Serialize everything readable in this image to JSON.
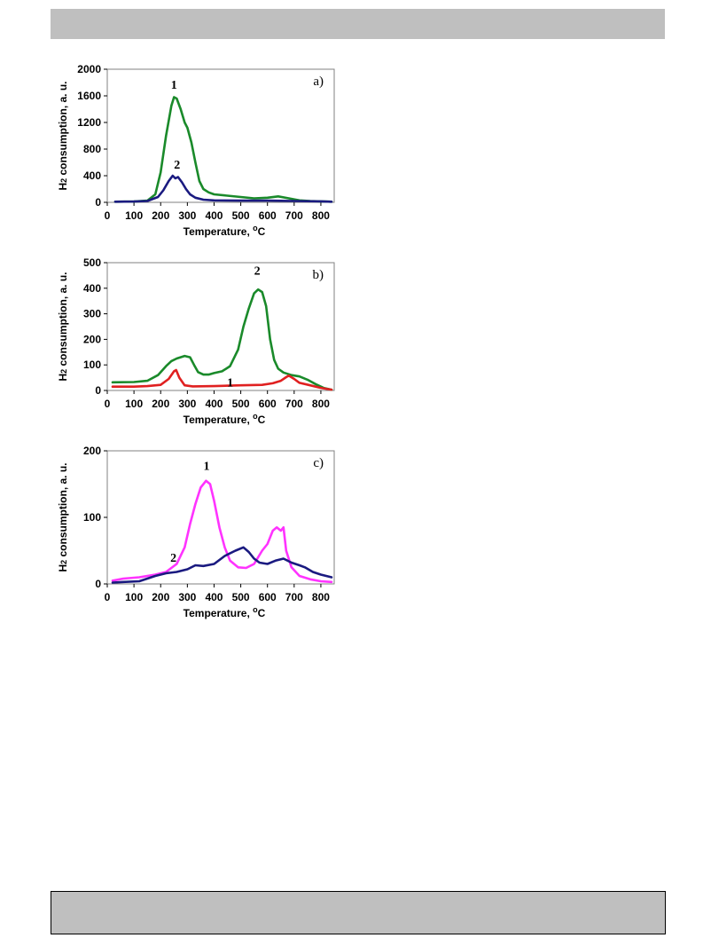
{
  "page": {
    "header_bar": "",
    "footer_box": ""
  },
  "chart_data": [
    {
      "type": "line",
      "panel_label": "a)",
      "xlabel": "Temperature, °C",
      "ylabel": "H2 consumption, a. u.",
      "xlim": [
        0,
        850
      ],
      "ylim": [
        0,
        2000
      ],
      "x_ticks": [
        0,
        100,
        200,
        300,
        400,
        500,
        600,
        700,
        800
      ],
      "y_ticks": [
        0,
        400,
        800,
        1200,
        1600,
        2000
      ],
      "series": [
        {
          "curve_label": "1",
          "color": "#1a8a2a",
          "points": [
            [
              30,
              10
            ],
            [
              100,
              12
            ],
            [
              150,
              25
            ],
            [
              180,
              120
            ],
            [
              200,
              450
            ],
            [
              220,
              1000
            ],
            [
              240,
              1450
            ],
            [
              250,
              1580
            ],
            [
              260,
              1560
            ],
            [
              275,
              1400
            ],
            [
              290,
              1200
            ],
            [
              300,
              1120
            ],
            [
              315,
              900
            ],
            [
              330,
              600
            ],
            [
              345,
              320
            ],
            [
              360,
              200
            ],
            [
              380,
              150
            ],
            [
              400,
              120
            ],
            [
              450,
              100
            ],
            [
              500,
              80
            ],
            [
              550,
              60
            ],
            [
              600,
              70
            ],
            [
              640,
              90
            ],
            [
              680,
              60
            ],
            [
              720,
              30
            ],
            [
              760,
              20
            ],
            [
              800,
              15
            ],
            [
              840,
              10
            ]
          ]
        },
        {
          "curve_label": "2",
          "color": "#1a1a80",
          "points": [
            [
              30,
              10
            ],
            [
              100,
              12
            ],
            [
              150,
              20
            ],
            [
              190,
              80
            ],
            [
              210,
              180
            ],
            [
              230,
              320
            ],
            [
              245,
              400
            ],
            [
              255,
              360
            ],
            [
              265,
              380
            ],
            [
              280,
              300
            ],
            [
              295,
              200
            ],
            [
              310,
              120
            ],
            [
              330,
              70
            ],
            [
              360,
              40
            ],
            [
              400,
              30
            ],
            [
              500,
              25
            ],
            [
              600,
              25
            ],
            [
              700,
              20
            ],
            [
              800,
              15
            ],
            [
              840,
              10
            ]
          ]
        }
      ]
    },
    {
      "type": "line",
      "panel_label": "b)",
      "xlabel": "Temperature, °C",
      "ylabel": "H2 consumption, a. u.",
      "xlim": [
        0,
        850
      ],
      "ylim": [
        0,
        500
      ],
      "x_ticks": [
        0,
        100,
        200,
        300,
        400,
        500,
        600,
        700,
        800
      ],
      "y_ticks": [
        0,
        100,
        200,
        300,
        400,
        500
      ],
      "series": [
        {
          "curve_label": "2",
          "color": "#1a8a2a",
          "points": [
            [
              20,
              32
            ],
            [
              100,
              33
            ],
            [
              150,
              38
            ],
            [
              190,
              60
            ],
            [
              220,
              95
            ],
            [
              240,
              115
            ],
            [
              260,
              125
            ],
            [
              290,
              135
            ],
            [
              310,
              130
            ],
            [
              325,
              100
            ],
            [
              340,
              72
            ],
            [
              360,
              62
            ],
            [
              380,
              62
            ],
            [
              400,
              68
            ],
            [
              430,
              75
            ],
            [
              460,
              95
            ],
            [
              490,
              160
            ],
            [
              510,
              250
            ],
            [
              530,
              320
            ],
            [
              550,
              380
            ],
            [
              565,
              395
            ],
            [
              580,
              385
            ],
            [
              595,
              330
            ],
            [
              610,
              200
            ],
            [
              625,
              120
            ],
            [
              640,
              85
            ],
            [
              660,
              70
            ],
            [
              690,
              60
            ],
            [
              720,
              55
            ],
            [
              750,
              42
            ],
            [
              780,
              25
            ],
            [
              810,
              10
            ],
            [
              840,
              3
            ]
          ]
        },
        {
          "curve_label": "1",
          "color": "#e02020",
          "points": [
            [
              20,
              15
            ],
            [
              100,
              15
            ],
            [
              150,
              17
            ],
            [
              200,
              22
            ],
            [
              230,
              45
            ],
            [
              250,
              75
            ],
            [
              258,
              80
            ],
            [
              270,
              50
            ],
            [
              290,
              20
            ],
            [
              320,
              16
            ],
            [
              400,
              17
            ],
            [
              500,
              20
            ],
            [
              580,
              22
            ],
            [
              620,
              28
            ],
            [
              650,
              38
            ],
            [
              670,
              52
            ],
            [
              680,
              58
            ],
            [
              700,
              45
            ],
            [
              720,
              30
            ],
            [
              760,
              20
            ],
            [
              800,
              10
            ],
            [
              840,
              3
            ]
          ]
        }
      ]
    },
    {
      "type": "line",
      "panel_label": "c)",
      "xlabel": "Temperature, °C",
      "ylabel": "H2 consumption, a. u.",
      "xlim": [
        0,
        850
      ],
      "ylim": [
        0,
        200
      ],
      "x_ticks": [
        0,
        100,
        200,
        300,
        400,
        500,
        600,
        700,
        800
      ],
      "y_ticks": [
        0,
        100,
        200
      ],
      "series": [
        {
          "curve_label": "1",
          "color": "#ff33ff",
          "points": [
            [
              20,
              5
            ],
            [
              60,
              8
            ],
            [
              120,
              10
            ],
            [
              180,
              14
            ],
            [
              220,
              18
            ],
            [
              260,
              30
            ],
            [
              290,
              55
            ],
            [
              310,
              90
            ],
            [
              330,
              120
            ],
            [
              350,
              145
            ],
            [
              370,
              155
            ],
            [
              385,
              150
            ],
            [
              400,
              125
            ],
            [
              420,
              85
            ],
            [
              440,
              55
            ],
            [
              460,
              35
            ],
            [
              490,
              25
            ],
            [
              520,
              24
            ],
            [
              550,
              30
            ],
            [
              580,
              50
            ],
            [
              600,
              60
            ],
            [
              620,
              80
            ],
            [
              635,
              85
            ],
            [
              650,
              80
            ],
            [
              660,
              85
            ],
            [
              670,
              50
            ],
            [
              690,
              25
            ],
            [
              720,
              12
            ],
            [
              760,
              7
            ],
            [
              800,
              4
            ],
            [
              840,
              3
            ]
          ]
        },
        {
          "curve_label": "2",
          "color": "#1a1a80",
          "points": [
            [
              20,
              2
            ],
            [
              60,
              3
            ],
            [
              120,
              4
            ],
            [
              180,
              12
            ],
            [
              220,
              16
            ],
            [
              260,
              18
            ],
            [
              300,
              22
            ],
            [
              330,
              28
            ],
            [
              360,
              27
            ],
            [
              400,
              30
            ],
            [
              440,
              42
            ],
            [
              480,
              50
            ],
            [
              510,
              55
            ],
            [
              530,
              48
            ],
            [
              550,
              38
            ],
            [
              570,
              32
            ],
            [
              600,
              30
            ],
            [
              630,
              35
            ],
            [
              660,
              38
            ],
            [
              690,
              32
            ],
            [
              720,
              28
            ],
            [
              740,
              25
            ],
            [
              770,
              18
            ],
            [
              800,
              14
            ],
            [
              840,
              10
            ]
          ]
        }
      ]
    }
  ]
}
